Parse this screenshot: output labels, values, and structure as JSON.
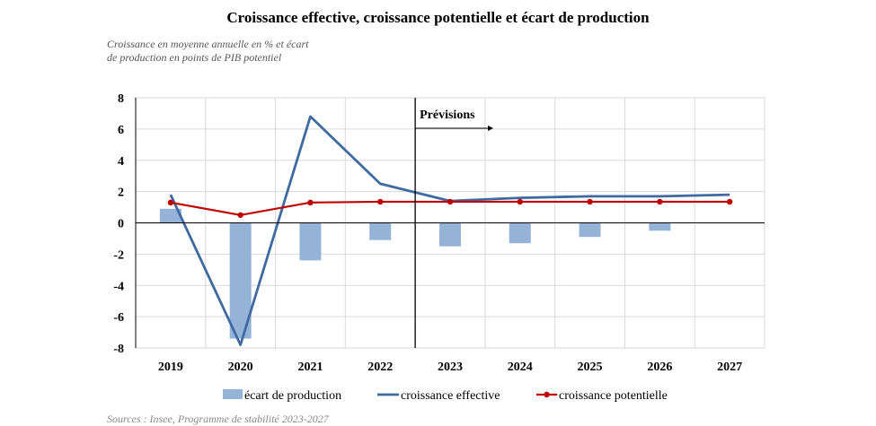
{
  "chart_data": {
    "type": "bar",
    "title": "Croissance effective, croissance potentielle et écart de production",
    "ylabel": "Croissance en moyenne annuelle en %  et écart de production en points de PIB potentiel",
    "categories": [
      "2019",
      "2020",
      "2021",
      "2022",
      "2023",
      "2024",
      "2025",
      "2026",
      "2027"
    ],
    "ylim": [
      -8,
      8
    ],
    "yticks": [
      8,
      6,
      4,
      2,
      0,
      -2,
      -4,
      -6,
      -8
    ],
    "grid": true,
    "legend_position": "bottom",
    "annotation": "Prévisions",
    "series": [
      {
        "name": "écart de production",
        "kind": "bar",
        "color": "#95b3d7",
        "values": [
          0.9,
          -7.4,
          -2.4,
          -1.1,
          -1.5,
          -1.3,
          -0.9,
          -0.5,
          0.0
        ]
      },
      {
        "name": "croissance effective",
        "kind": "line",
        "color": "#3f6aa0",
        "values": [
          1.8,
          -7.8,
          6.8,
          2.5,
          1.4,
          1.6,
          1.7,
          1.7,
          1.8
        ]
      },
      {
        "name": "croissance potentielle",
        "kind": "line-marker",
        "color": "#c00000",
        "values": [
          1.3,
          0.5,
          1.3,
          1.35,
          1.35,
          1.35,
          1.35,
          1.35,
          1.35
        ]
      }
    ],
    "source": "Sources : Insee, Programme de stabilité 2023-2027"
  }
}
